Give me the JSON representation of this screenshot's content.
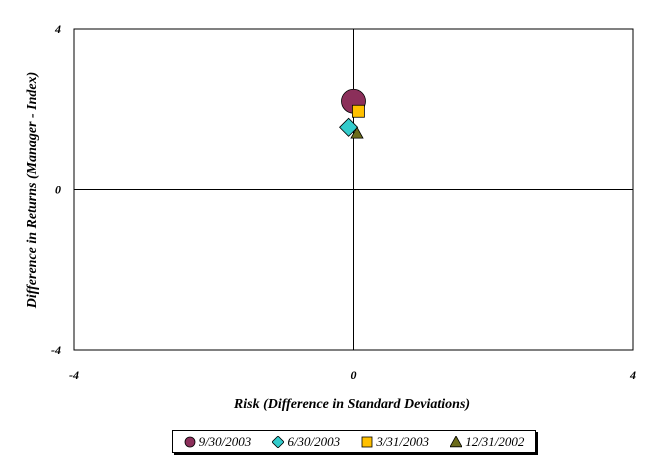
{
  "chart_data": {
    "type": "scatter",
    "title": "",
    "xlabel": "Risk (Difference in Standard Deviations)",
    "ylabel": "Difference in Returns (Manager - Index)",
    "xlim": [
      -4,
      4
    ],
    "ylim": [
      -4,
      4
    ],
    "x_ticks": [
      "-4",
      "0",
      "4"
    ],
    "y_ticks": [
      "4",
      "0",
      "-4"
    ],
    "grid": false,
    "legend_position": "bottom",
    "series": [
      {
        "name": "9/30/2003",
        "marker": "circle",
        "color": "#8B2F5A",
        "points": [
          {
            "x": 0.0,
            "y": 2.2
          }
        ]
      },
      {
        "name": "6/30/2003",
        "marker": "diamond",
        "color": "#33CCCC",
        "points": [
          {
            "x": -0.07,
            "y": 1.55
          }
        ]
      },
      {
        "name": "3/31/2003",
        "marker": "square",
        "color": "#FFC000",
        "points": [
          {
            "x": 0.07,
            "y": 1.95
          }
        ]
      },
      {
        "name": "12/31/2002",
        "marker": "triangle",
        "color": "#6B6B1A",
        "points": [
          {
            "x": 0.05,
            "y": 1.4
          }
        ]
      }
    ]
  }
}
